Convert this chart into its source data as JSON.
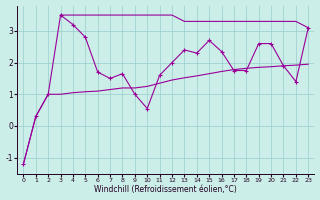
{
  "xlabel": "Windchill (Refroidissement éolien,°C)",
  "background_color": "#cceee8",
  "line_color": "#990099",
  "grid_color": "#99cccc",
  "x_min": -0.5,
  "x_max": 23.5,
  "y_min": -1.5,
  "y_max": 3.8,
  "yticks": [
    -1,
    0,
    1,
    2,
    3
  ],
  "xticks": [
    0,
    1,
    2,
    3,
    4,
    5,
    6,
    7,
    8,
    9,
    10,
    11,
    12,
    13,
    14,
    15,
    16,
    17,
    18,
    19,
    20,
    21,
    22,
    23
  ],
  "line1_x": [
    3,
    4,
    5,
    6,
    7,
    8,
    9,
    10,
    11,
    12,
    13,
    14,
    15,
    16,
    17,
    18,
    19,
    20,
    21,
    22,
    23
  ],
  "line1_y": [
    3.5,
    3.5,
    3.5,
    3.5,
    3.5,
    3.5,
    3.5,
    3.5,
    3.5,
    3.5,
    3.3,
    3.3,
    3.3,
    3.3,
    3.3,
    3.3,
    3.3,
    3.3,
    3.3,
    3.3,
    3.1
  ],
  "line2_x": [
    0,
    1,
    2,
    3,
    4,
    5,
    6,
    7,
    8,
    9,
    10,
    11,
    12,
    13,
    14,
    15,
    16,
    17,
    18,
    19,
    20,
    21,
    22,
    23
  ],
  "line2_y": [
    -1.2,
    0.3,
    1.0,
    3.5,
    3.2,
    2.8,
    1.7,
    1.5,
    1.65,
    1.0,
    0.55,
    1.6,
    2.0,
    2.4,
    2.3,
    2.7,
    2.35,
    1.75,
    1.75,
    2.6,
    2.6,
    1.9,
    1.4,
    3.1
  ],
  "line3_x": [
    0,
    1,
    2,
    3,
    4,
    5,
    6,
    7,
    8,
    9,
    10,
    11,
    12,
    13,
    14,
    15,
    16,
    17,
    18,
    19,
    20,
    21,
    22,
    23
  ],
  "line3_y": [
    -1.2,
    0.3,
    1.0,
    1.0,
    1.05,
    1.08,
    1.1,
    1.15,
    1.2,
    1.2,
    1.25,
    1.35,
    1.45,
    1.52,
    1.58,
    1.65,
    1.72,
    1.78,
    1.82,
    1.85,
    1.87,
    1.9,
    1.92,
    1.95
  ]
}
